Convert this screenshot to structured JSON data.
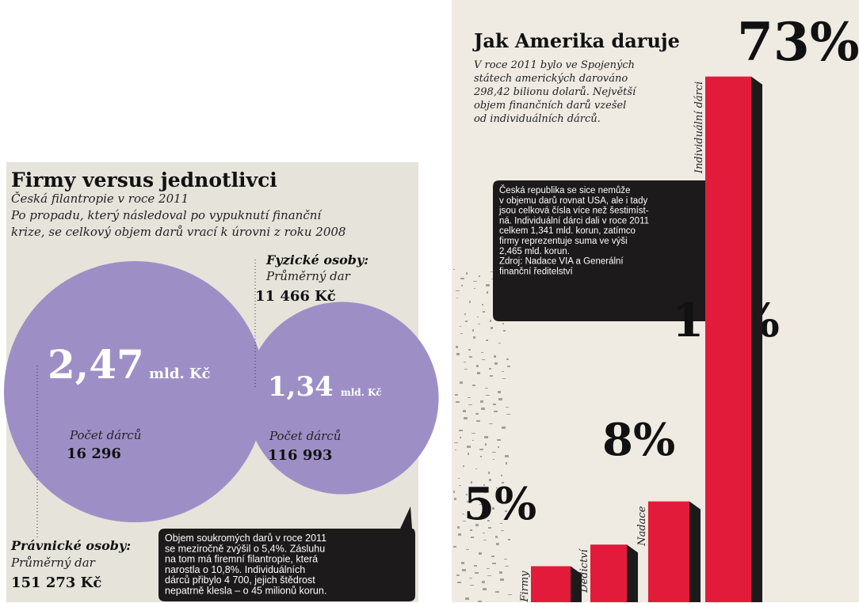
{
  "left": {
    "title": "Firmy versus jednotlivci",
    "subtitle": [
      "Česká filantropie v roce 2011",
      "Po propadu, který následoval po vypuknutí finanční",
      "krize, se celkový objem darů vrací k úrovni z roku 2008"
    ],
    "bubbles": [
      {
        "value": 2.47,
        "label": "2,47",
        "unit": "mld. Kč",
        "count_label": "Počet dárců",
        "count": "16 296",
        "color": "#9d8fc6"
      },
      {
        "value": 1.34,
        "label": "1,34",
        "unit": "mld. Kč",
        "count_label": "Počet dárců",
        "count": "116 993",
        "color": "#9d8fc6"
      }
    ],
    "individuals": {
      "label": "Fyzické osoby:",
      "sublabel": "Průměrný dar",
      "value": "11 466 Kč"
    },
    "companies": {
      "label": "Právnické osoby:",
      "sublabel": "Průměrný dar",
      "value": "151 273 Kč"
    },
    "note": [
      "Objem soukromých darů v roce 2011",
      "se meziročně zvýšil o 5,4%. Zásluhu",
      "na tom má firemní filantropie, která",
      "narostla o 10,8%. Individuálních",
      "dárců přibylo 4 700, jejich štědrost",
      "nepatrně klesla – o 45 milionů korun."
    ]
  },
  "chart_data": {
    "type": "bar",
    "title": "Jak Amerika daruje",
    "subtitle": [
      "V roce 2011 bylo ve Spojených",
      "státech amerických darováno",
      "298,42 bilionu dolarů. Největší",
      "objem finančních darů vzešel",
      "od individuálních dárců."
    ],
    "categories": [
      "Firmy",
      "Dědictví",
      "Nadace",
      "Individuální dárci"
    ],
    "values": [
      5,
      8,
      14,
      73
    ],
    "value_labels": [
      "5%",
      "8%",
      "14%",
      "73%"
    ],
    "color": "#e31b3b",
    "note": [
      "Česká republika se sice nemůže",
      "v objemu darů rovnat USA, ale i tady",
      "jsou celková čísla více než šestimíst-",
      "ná. Individuální dárci dali v roce 2011",
      "celkem 1,341 mld. korun, zatímco",
      "firmy reprezentuje suma ve výši",
      "2,465 mld. korun.",
      "Zdroj: Nadace VIA a Generální",
      "finanční ředitelství"
    ]
  }
}
